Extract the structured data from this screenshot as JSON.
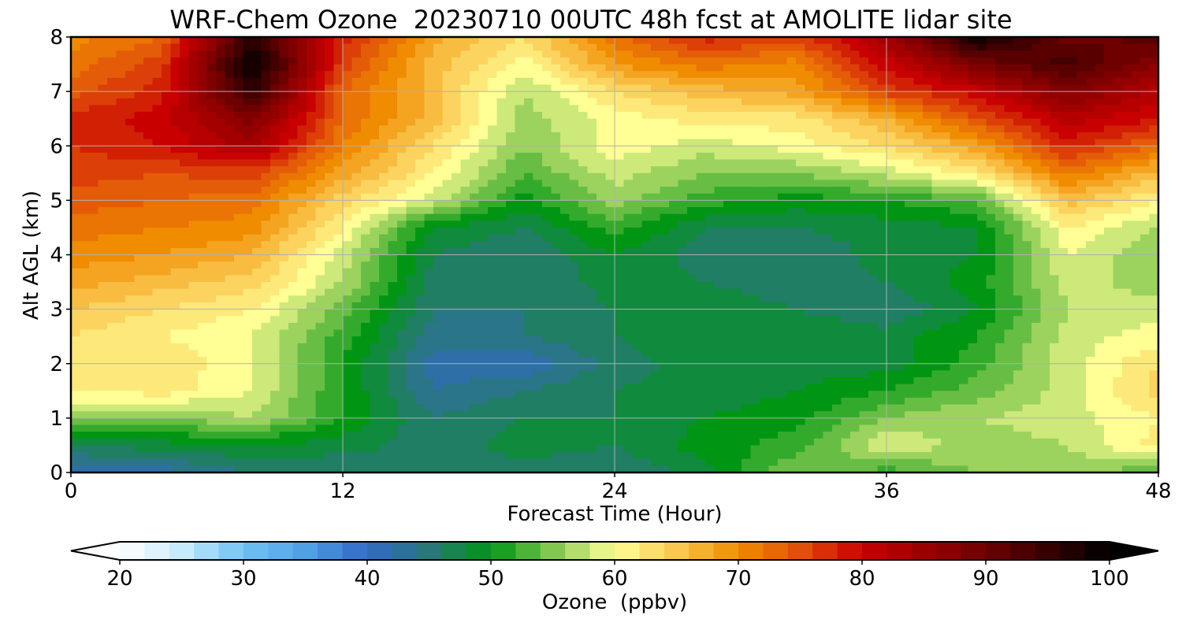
{
  "chart_data": {
    "type": "heatmap",
    "title": "WRF-Chem Ozone  20230710 00UTC 48h fcst at AMOLITE lidar site",
    "xlabel": "Forecast Time (Hour)",
    "ylabel": "Alt AGL (km)",
    "xlim": [
      0,
      48
    ],
    "ylim": [
      0,
      8
    ],
    "xticks": [
      0,
      12,
      24,
      36,
      48
    ],
    "yticks": [
      0,
      1,
      2,
      3,
      4,
      5,
      6,
      7,
      8
    ],
    "grid": true,
    "colorbar": {
      "label": "Ozone  (ppbv)",
      "range": [
        20,
        100
      ],
      "ticks": [
        20,
        30,
        40,
        50,
        60,
        70,
        80,
        90,
        100
      ],
      "extend": "both",
      "orientation": "horizontal",
      "position": "bottom"
    },
    "x": [
      0,
      4,
      8,
      12,
      16,
      20,
      24,
      28,
      32,
      36,
      40,
      44,
      48
    ],
    "y": [
      0,
      0.5,
      1,
      1.5,
      2,
      2.5,
      3,
      3.5,
      4,
      4.5,
      5,
      5.5,
      6,
      6.5,
      7,
      7.5,
      8
    ],
    "z": [
      [
        41,
        42,
        45,
        45,
        46,
        46,
        45,
        48,
        55,
        52,
        55,
        56,
        53
      ],
      [
        47,
        48,
        49,
        48,
        46,
        48,
        47,
        50,
        52,
        59,
        56,
        57,
        62
      ],
      [
        56,
        55,
        57,
        51,
        45,
        47,
        47,
        49,
        50,
        55,
        57,
        58,
        61
      ],
      [
        61,
        62,
        59,
        51,
        43,
        45,
        47,
        48,
        49,
        51,
        54,
        58,
        64
      ],
      [
        62,
        63,
        59,
        51,
        42,
        41,
        46,
        48,
        48,
        48,
        52,
        58,
        63
      ],
      [
        63,
        61,
        59,
        52,
        44,
        45,
        47,
        49,
        49,
        48,
        51,
        58,
        60
      ],
      [
        65,
        63,
        61,
        54,
        45,
        45,
        47,
        48,
        47,
        45,
        49,
        57,
        58
      ],
      [
        68,
        66,
        64,
        57,
        46,
        45,
        48,
        47,
        46,
        47,
        50,
        58,
        56
      ],
      [
        70,
        69,
        67,
        58,
        47,
        45,
        49,
        46,
        45,
        48,
        49,
        59,
        55
      ],
      [
        72,
        71,
        70,
        61,
        49,
        47,
        52,
        47,
        47,
        48,
        49,
        61,
        57
      ],
      [
        74,
        73,
        72,
        64,
        58,
        50,
        56,
        52,
        50,
        51,
        53,
        66,
        61
      ],
      [
        76,
        75,
        76,
        68,
        61,
        53,
        58,
        55,
        55,
        58,
        62,
        72,
        66
      ],
      [
        77,
        79,
        84,
        71,
        63,
        55,
        60,
        58,
        60,
        63,
        68,
        78,
        73
      ],
      [
        78,
        80,
        88,
        73,
        66,
        56,
        60,
        62,
        62,
        67,
        75,
        82,
        79
      ],
      [
        74,
        78,
        96,
        73,
        66,
        57,
        63,
        66,
        68,
        76,
        80,
        88,
        82
      ],
      [
        72,
        76,
        100,
        76,
        66,
        60,
        69,
        72,
        70,
        80,
        89,
        94,
        87
      ],
      [
        70,
        73,
        96,
        78,
        68,
        63,
        72,
        78,
        76,
        84,
        99,
        90,
        92
      ]
    ]
  }
}
